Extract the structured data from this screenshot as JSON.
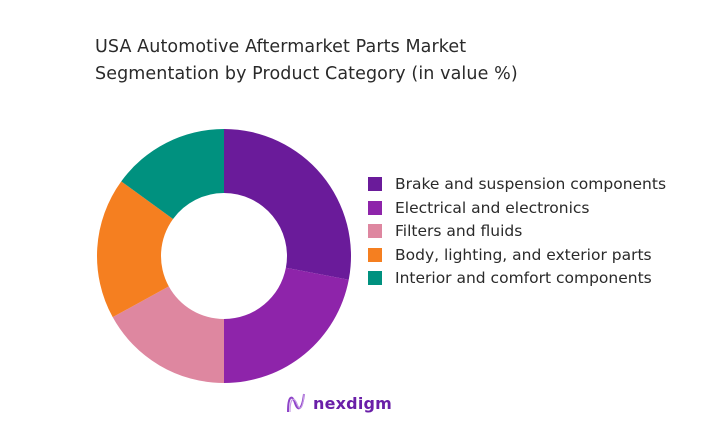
{
  "title_line1": "USA Automotive Aftermarket Parts Market",
  "title_line2": "Segmentation by Product Category (in value %)",
  "logo": {
    "text": "nexdigm",
    "icon": "nexdigm-wave-icon"
  },
  "chart_data": {
    "type": "pie",
    "donut": true,
    "title": "USA Automotive Aftermarket Parts Market Segmentation by Product Category (in value %)",
    "categories": [
      "Brake and suspension components",
      "Electrical and electronics",
      "Filters and fluids",
      "Body, lighting, and exterior parts",
      "Interior and comfort components"
    ],
    "values": [
      28,
      22,
      17,
      18,
      15
    ],
    "colors": [
      "#6a1b9a",
      "#8e24aa",
      "#de87a0",
      "#f57f20",
      "#00917f"
    ],
    "legend_position": "right",
    "start_angle": "12 o'clock, clockwise"
  },
  "legend": [
    {
      "label": "Brake and suspension components",
      "color": "#6a1b9a"
    },
    {
      "label": "Electrical and electronics",
      "color": "#8e24aa"
    },
    {
      "label": "Filters and fluids",
      "color": "#de87a0"
    },
    {
      "label": "Body, lighting, and exterior parts",
      "color": "#f57f20"
    },
    {
      "label": "Interior and comfort components",
      "color": "#00917f"
    }
  ]
}
